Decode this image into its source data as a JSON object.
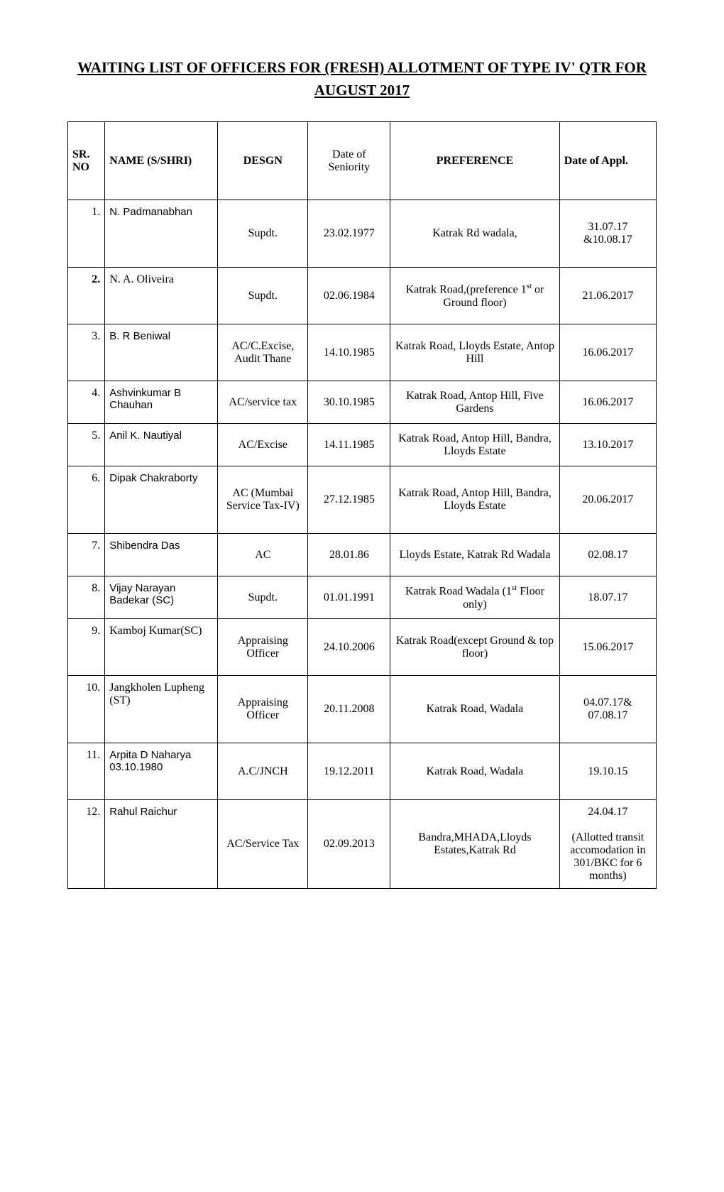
{
  "title": "WAITING LIST OF OFFICERS FOR (FRESH) ALLOTMENT OF TYPE IV' QTR FOR AUGUST  2017",
  "table": {
    "columns": [
      "SR. NO",
      "NAME (S/SHRI)",
      "DESGN",
      "Date of Seniority",
      "PREFERENCE",
      "Date of Appl."
    ],
    "rows": [
      {
        "sr": "1.",
        "name": "N. Padmanabhan",
        "desgn": "Supdt.",
        "dos": "23.02.1977",
        "pref": "Katrak Rd wadala,",
        "appl": "31.07.17 &10.08.17",
        "h": "tall"
      },
      {
        "sr": "2.",
        "name": "N. A. Oliveira",
        "desgn": "Supdt.",
        "dos": "02.06.1984",
        "pref": "Katrak  Road,(preference 1<sup>st</sup> or Ground floor)",
        "appl": "21.06.2017",
        "h": "med",
        "srbold": true,
        "nameTimes": true
      },
      {
        "sr": "3.",
        "name": "B. R Beniwal",
        "desgn": "AC/C.Excise, Audit Thane",
        "dos": "14.10.1985",
        "pref": "Katrak Road, Lloyds Estate, Antop Hill",
        "appl": "16.06.2017",
        "h": "med"
      },
      {
        "sr": "4.",
        "name": "Ashvinkumar B Chauhan",
        "desgn": "AC/service tax",
        "dos": "30.10.1985",
        "pref": "Katrak Road, Antop Hill, Five Gardens",
        "appl": "16.06.2017",
        "h": "short"
      },
      {
        "sr": "5.",
        "name": "Anil K. Nautiyal",
        "desgn": "AC/Excise",
        "dos": "14.11.1985",
        "pref": "Katrak Road, Antop Hill, Bandra, Lloyds Estate",
        "appl": "13.10.2017",
        "h": "short"
      },
      {
        "sr": "6.",
        "name": "Dipak Chakraborty",
        "desgn": "AC (Mumbai Service Tax-IV)",
        "dos": "27.12.1985",
        "pref": "Katrak Road, Antop Hill, Bandra, Lloyds Estate",
        "appl": "20.06.2017",
        "h": "tall"
      },
      {
        "sr": "7.",
        "name": "Shibendra  Das",
        "desgn": "AC",
        "dos": "28.01.86",
        "pref": "Lloyds Estate, Katrak Rd Wadala",
        "appl": "02.08.17",
        "h": "short"
      },
      {
        "sr": "8.",
        "name": "Vijay Narayan Badekar (SC)",
        "desgn": "Supdt.",
        "dos": "01.01.1991",
        "pref": "Katrak Road Wadala (1<sup>st</sup> Floor only)",
        "appl": "18.07.17",
        "h": "short"
      },
      {
        "sr": "9.",
        "name": "Kamboj Kumar(SC)",
        "desgn": "Appraising Officer",
        "dos": "24.10.2006",
        "pref": "Katrak Road(except Ground & top floor)",
        "appl": "15.06.2017",
        "h": "med",
        "nameTimes": true
      },
      {
        "sr": "10.",
        "name": "Jangkholen Lupheng (ST)",
        "desgn": "Appraising Officer",
        "dos": "20.11.2008",
        "pref": "Katrak Road, Wadala",
        "appl": "04.07.17& 07.08.17",
        "h": "tall",
        "nameTimes": true
      },
      {
        "sr": "11.",
        "name": "Arpita D Naharya<br>03.10.1980",
        "desgn": "A.C/JNCH",
        "dos": "19.12.2011",
        "pref": "Katrak Road, Wadala",
        "appl": "19.10.15",
        "h": "med"
      },
      {
        "sr": "12.",
        "name": "Rahul Raichur",
        "desgn": "AC/Service Tax",
        "dos": "02.09.2013",
        "pref": "Bandra,MHADA,Lloyds Estates,Katrak Rd",
        "appl": "24.04.17<br><br>(Allotted transit accomodation in 301/BKC for 6 months)",
        "h": "tall"
      }
    ]
  }
}
